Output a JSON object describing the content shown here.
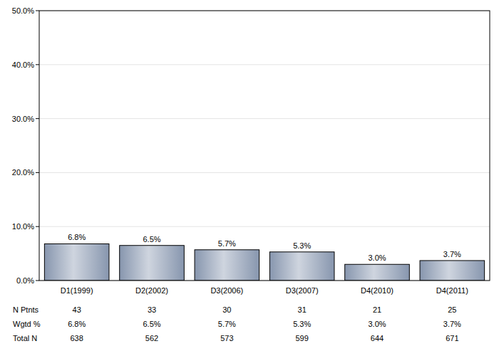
{
  "chart_data": {
    "type": "bar",
    "categories": [
      "D1(1999)",
      "D2(2002)",
      "D3(2006)",
      "D3(2007)",
      "D4(2010)",
      "D4(2011)"
    ],
    "values": [
      6.8,
      6.5,
      5.7,
      5.3,
      3.0,
      3.7
    ],
    "value_labels": [
      "6.8%",
      "6.5%",
      "5.7%",
      "5.3%",
      "3.0%",
      "3.7%"
    ],
    "data_labels": true,
    "color": "#8796ae",
    "ylim": [
      0,
      50
    ],
    "yticks": [
      {
        "value": 0,
        "label": "0.0%"
      },
      {
        "value": 10,
        "label": "10.0%"
      },
      {
        "value": 20,
        "label": "20.0%"
      },
      {
        "value": 30,
        "label": "30.0%"
      },
      {
        "value": 40,
        "label": "40.0%"
      },
      {
        "value": 50,
        "label": "50.0%"
      }
    ],
    "grid": true,
    "table_rows": [
      {
        "name": "N Ptnts",
        "values": [
          43,
          33,
          30,
          31,
          21,
          25
        ]
      },
      {
        "name": "Wgtd %",
        "values": [
          6.8,
          6.5,
          5.7,
          5.3,
          3.0,
          3.7
        ],
        "value_labels": [
          "6.8%",
          "6.5%",
          "5.7%",
          "5.3%",
          "3.0%",
          "3.7%"
        ]
      },
      {
        "name": "Total N",
        "values": [
          638,
          562,
          573,
          599,
          644,
          671
        ]
      }
    ]
  }
}
